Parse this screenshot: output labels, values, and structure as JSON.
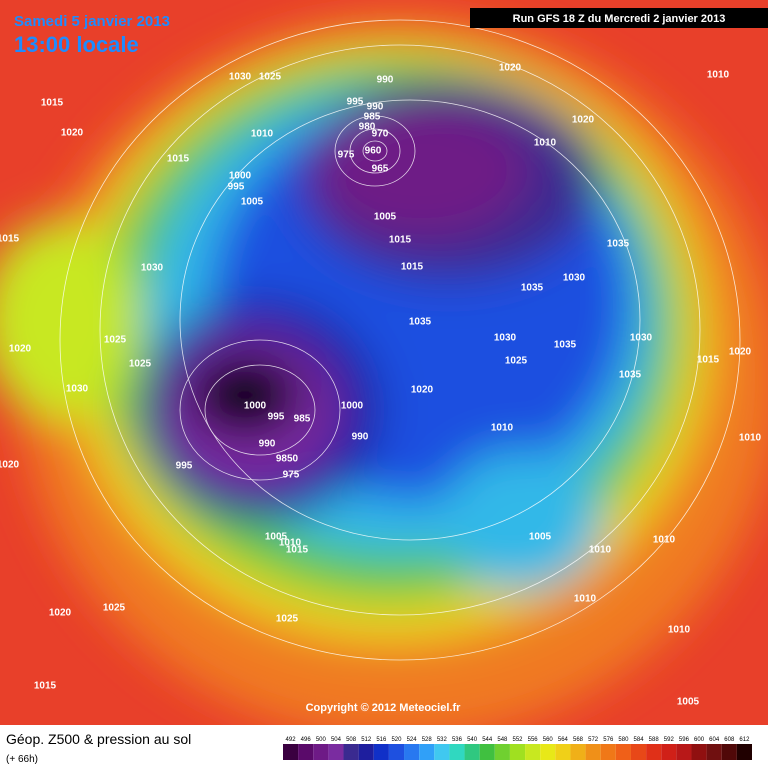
{
  "header": {
    "date": "Samedi 5 janvier 2013",
    "time": "13:00 locale",
    "run": "Run GFS 18 Z du Mercredi 2 janvier 2013"
  },
  "map": {
    "pressure_labels": [
      "1030",
      "1025",
      "990",
      "1020",
      "1010",
      "1015",
      "995",
      "990",
      "985",
      "980",
      "1020",
      "1010",
      "970",
      "960",
      "1010",
      "1020",
      "975",
      "965",
      "1015",
      "1000",
      "995",
      "1005",
      "1005",
      "1015",
      "1015",
      "1035",
      "1030",
      "1015",
      "1030",
      "1035",
      "1035",
      "1030",
      "1025",
      "1035",
      "1030",
      "1020",
      "1025",
      "1025",
      "1015",
      "1020",
      "1030",
      "1035",
      "1020",
      "1000",
      "995",
      "985",
      "1000",
      "1010",
      "990",
      "990",
      "1010",
      "1020",
      "995",
      "9850",
      "975",
      "1005",
      "1010",
      "1005",
      "1010",
      "1015",
      "1010",
      "1020",
      "1025",
      "1025",
      "1010",
      "1010",
      "1015",
      "1005"
    ],
    "copyright": "Copyright © 2012 Meteociel.fr"
  },
  "footer": {
    "title": "Géop. Z500 & pression au sol",
    "subtitle": "(+ 66h)"
  },
  "colorbar": {
    "labels": [
      "492",
      "496",
      "500",
      "504",
      "508",
      "512",
      "516",
      "520",
      "524",
      "528",
      "532",
      "536",
      "540",
      "544",
      "548",
      "552",
      "556",
      "560",
      "564",
      "568",
      "572",
      "576",
      "580",
      "584",
      "588",
      "592",
      "596",
      "600",
      "604",
      "608",
      "612"
    ],
    "colors": [
      "#3a0040",
      "#5a0a6a",
      "#6e1a86",
      "#7a2ca0",
      "#3a2a90",
      "#1e1e9e",
      "#1030c8",
      "#1e50e0",
      "#2878f0",
      "#30a0f8",
      "#40c8f0",
      "#30d8c0",
      "#30c880",
      "#40c040",
      "#70d030",
      "#a0e020",
      "#c8e820",
      "#e8e818",
      "#f0d018",
      "#f0b018",
      "#f09018",
      "#f07818",
      "#f06018",
      "#e84818",
      "#e03018",
      "#d02018",
      "#b81818",
      "#901010",
      "#701010",
      "#500808",
      "#200000"
    ]
  }
}
